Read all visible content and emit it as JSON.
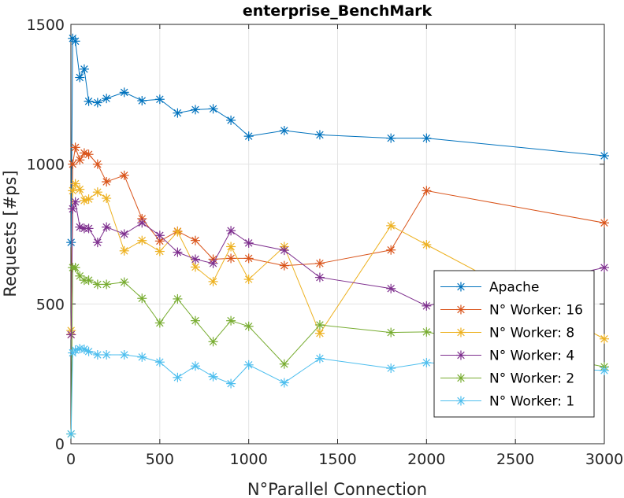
{
  "chart_data": {
    "type": "line",
    "title": "enterprise_BenchMark",
    "xlabel": "N°Parallel Connection",
    "ylabel": "Requests [#ps]",
    "xlim": [
      0,
      3000
    ],
    "ylim": [
      0,
      1500
    ],
    "xticks": [
      0,
      500,
      1000,
      1500,
      2000,
      2500,
      3000
    ],
    "yticks": [
      0,
      500,
      1000,
      1500
    ],
    "grid": true,
    "legend_position": "bottom-right",
    "marker": "asterisk",
    "x": [
      1,
      10,
      25,
      50,
      75,
      100,
      150,
      200,
      300,
      400,
      500,
      600,
      700,
      800,
      900,
      1000,
      1200,
      1400,
      1800,
      2000,
      3000
    ],
    "series": [
      {
        "name": "Apache",
        "color": "#0072BD",
        "values": [
          720,
          1450,
          1440,
          1310,
          1340,
          1225,
          1220,
          1235,
          1257,
          1227,
          1232,
          1183,
          1195,
          1198,
          1157,
          1100,
          1120,
          1105,
          1093,
          1093,
          1030
        ]
      },
      {
        "name": "N° Worker: 16",
        "color": "#D95319",
        "values": [
          390,
          1000,
          1060,
          1015,
          1040,
          1035,
          1000,
          937,
          960,
          805,
          725,
          760,
          727,
          660,
          663,
          663,
          637,
          645,
          693,
          905,
          790
        ]
      },
      {
        "name": "N° Worker: 8",
        "color": "#EDB120",
        "values": [
          405,
          905,
          930,
          910,
          870,
          875,
          900,
          878,
          690,
          727,
          688,
          758,
          632,
          580,
          705,
          588,
          705,
          395,
          780,
          712,
          375
        ]
      },
      {
        "name": "N° Worker: 4",
        "color": "#7E2F8E",
        "values": [
          390,
          840,
          865,
          775,
          770,
          770,
          720,
          775,
          750,
          790,
          745,
          685,
          660,
          645,
          762,
          718,
          692,
          595,
          555,
          493,
          630
        ]
      },
      {
        "name": "N° Worker: 2",
        "color": "#77AC30",
        "values": [
          35,
          630,
          630,
          600,
          585,
          585,
          570,
          570,
          578,
          520,
          432,
          518,
          440,
          365,
          440,
          420,
          285,
          425,
          398,
          400,
          275
        ]
      },
      {
        "name": "N° Worker: 1",
        "color": "#4DBEEE",
        "values": [
          35,
          325,
          335,
          340,
          338,
          330,
          318,
          318,
          318,
          310,
          292,
          237,
          278,
          240,
          215,
          282,
          218,
          305,
          270,
          290,
          262
        ]
      }
    ]
  }
}
